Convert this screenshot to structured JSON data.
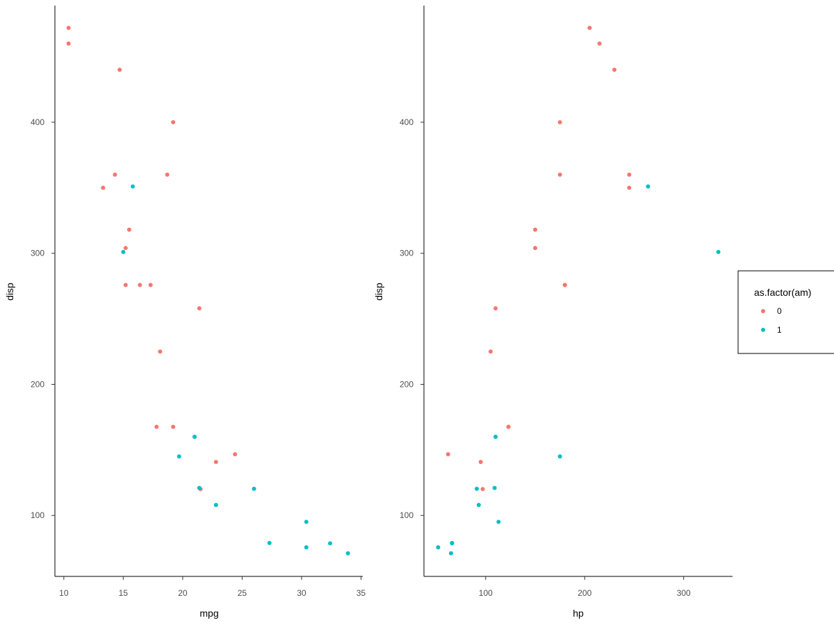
{
  "chart_data": [
    {
      "type": "scatter",
      "xlabel": "mpg",
      "ylabel": "disp",
      "xlim": [
        9.25,
        35.15
      ],
      "ylim": [
        53.5,
        489.0
      ],
      "xticks": [
        10,
        15,
        20,
        25,
        30,
        35
      ],
      "yticks": [
        100,
        200,
        300,
        400
      ],
      "grid": false,
      "series": [
        {
          "name": "0",
          "points": [
            [
              21.4,
              258
            ],
            [
              18.7,
              360
            ],
            [
              18.1,
              225
            ],
            [
              14.3,
              360
            ],
            [
              24.4,
              146.7
            ],
            [
              22.8,
              140.8
            ],
            [
              19.2,
              167.6
            ],
            [
              17.8,
              167.6
            ],
            [
              16.4,
              275.8
            ],
            [
              17.3,
              275.8
            ],
            [
              15.2,
              275.8
            ],
            [
              10.4,
              472
            ],
            [
              10.4,
              460
            ],
            [
              14.7,
              440
            ],
            [
              21.5,
              120.1
            ],
            [
              15.5,
              318
            ],
            [
              15.2,
              304
            ],
            [
              13.3,
              350
            ],
            [
              19.2,
              400
            ]
          ]
        },
        {
          "name": "1",
          "points": [
            [
              21.0,
              160
            ],
            [
              21.0,
              160
            ],
            [
              22.8,
              108
            ],
            [
              32.4,
              78.7
            ],
            [
              30.4,
              75.7
            ],
            [
              33.9,
              71.1
            ],
            [
              27.3,
              79
            ],
            [
              26.0,
              120.3
            ],
            [
              30.4,
              95.1
            ],
            [
              15.8,
              351
            ],
            [
              19.7,
              145
            ],
            [
              15.0,
              301
            ],
            [
              21.4,
              121
            ]
          ]
        }
      ]
    },
    {
      "type": "scatter",
      "xlabel": "hp",
      "ylabel": "disp",
      "xlim": [
        37.65,
        349.35
      ],
      "ylim": [
        53.5,
        489.0
      ],
      "xticks": [
        100,
        200,
        300
      ],
      "yticks": [
        100,
        200,
        300,
        400
      ],
      "grid": false,
      "series": [
        {
          "name": "0",
          "points": [
            [
              110,
              258
            ],
            [
              175,
              360
            ],
            [
              105,
              225
            ],
            [
              245,
              360
            ],
            [
              62,
              146.7
            ],
            [
              95,
              140.8
            ],
            [
              123,
              167.6
            ],
            [
              123,
              167.6
            ],
            [
              180,
              275.8
            ],
            [
              180,
              275.8
            ],
            [
              180,
              275.8
            ],
            [
              205,
              472
            ],
            [
              215,
              460
            ],
            [
              230,
              440
            ],
            [
              97,
              120.1
            ],
            [
              150,
              318
            ],
            [
              150,
              304
            ],
            [
              245,
              350
            ],
            [
              175,
              400
            ]
          ]
        },
        {
          "name": "1",
          "points": [
            [
              110,
              160
            ],
            [
              110,
              160
            ],
            [
              93,
              108
            ],
            [
              66,
              78.7
            ],
            [
              52,
              75.7
            ],
            [
              65,
              71.1
            ],
            [
              66,
              79
            ],
            [
              91,
              120.3
            ],
            [
              113,
              95.1
            ],
            [
              264,
              351
            ],
            [
              175,
              145
            ],
            [
              335,
              301
            ],
            [
              109,
              121
            ]
          ]
        }
      ]
    }
  ],
  "legend": {
    "title": "as.factor(am)",
    "placement": "right",
    "items": [
      {
        "label": "0",
        "color": "#F8766D"
      },
      {
        "label": "1",
        "color": "#00BFC4"
      }
    ]
  },
  "colors": {
    "series_0": "#F8766D",
    "series_1": "#00BFC4",
    "axis": "#000000",
    "tick_text": "#4d4d4d"
  }
}
